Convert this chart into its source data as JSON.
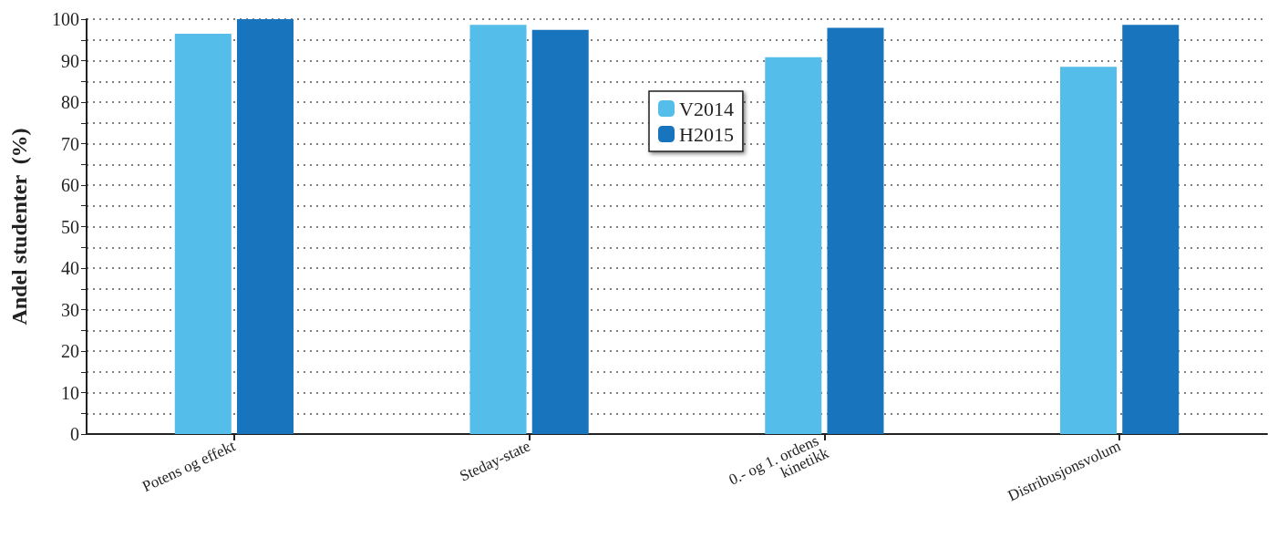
{
  "chart_data": {
    "type": "bar",
    "ylabel": "Andel studenter  (%)",
    "categories": [
      "Potens og effekt",
      "Steday-state",
      "0.- og 1. ordens kinetikk",
      "Distribusjonsvolum"
    ],
    "series": [
      {
        "name": "V2014",
        "color": "#55bde9",
        "values": [
          96.5,
          98.6,
          90.8,
          88.5
        ]
      },
      {
        "name": "H2015",
        "color": "#1874bc",
        "values": [
          100,
          97.4,
          97.9,
          98.6
        ]
      }
    ],
    "ylim": [
      0,
      100
    ],
    "yticks": [
      0,
      {
        "value": 5,
        "label": null
      },
      10,
      {
        "value": 15,
        "label": null
      },
      20,
      {
        "value": 25,
        "label": null
      },
      30,
      {
        "value": 35,
        "label": null
      },
      40,
      {
        "value": 45,
        "label": null
      },
      50,
      {
        "value": 55,
        "label": null
      },
      60,
      {
        "value": 65,
        "label": null
      },
      70,
      {
        "value": 75,
        "label": null
      },
      80,
      {
        "value": 85,
        "label": null
      },
      90,
      {
        "value": 95,
        "label": null
      },
      100
    ],
    "grid": true,
    "legend": "top"
  }
}
